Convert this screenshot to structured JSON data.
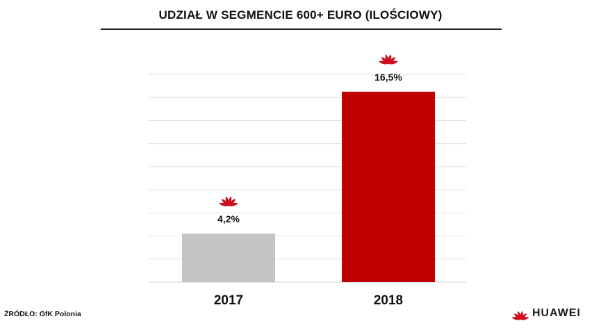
{
  "title": "UDZIAŁ W SEGMENCIE 600+ EURO (ILOŚCIOWY)",
  "source": "ŹRÓDŁO: GfK Polonia",
  "brand": {
    "name": "HUAWEI",
    "logo_icon": "huawei-logo-icon",
    "color": "#cc0f1e"
  },
  "chart_data": {
    "type": "bar",
    "title": "UDZIAŁ W SEGMENCIE 600+ EURO (ILOŚCIOWY)",
    "categories": [
      "2017",
      "2018"
    ],
    "values": [
      4.2,
      16.5
    ],
    "value_labels": [
      "4,2%",
      "16,5%"
    ],
    "colors": [
      "#c4c4c4",
      "#c00000"
    ],
    "ylim": [
      0,
      18
    ],
    "grid": true,
    "legend": "none",
    "bar_annotation_icon": "huawei-logo-icon"
  }
}
